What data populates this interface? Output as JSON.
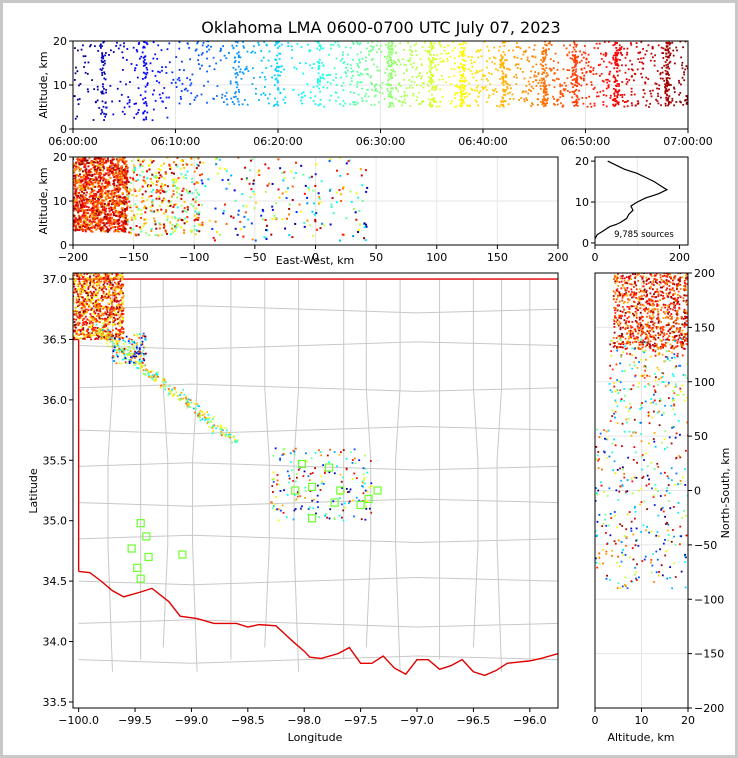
{
  "figure": {
    "title": "Oklahoma LMA 0600-0700 UTC July 07, 2023",
    "source_count_label": "9,785 sources"
  },
  "chart_data": [
    {
      "panel": "altitude-time",
      "type": "scatter",
      "xlabel": "",
      "ylabel": "Altitude, km",
      "x_ticks": [
        "06:00:00",
        "06:10:00",
        "06:20:00",
        "06:30:00",
        "06:40:00",
        "06:50:00",
        "07:00:00"
      ],
      "xlim_minutes": [
        0,
        60
      ],
      "ylim": [
        0,
        20
      ],
      "y_ticks": [
        0,
        10,
        20
      ],
      "colormap": "jet (by time)",
      "grid": true
    },
    {
      "panel": "altitude-eastwest",
      "type": "scatter",
      "xlabel": "East-West, km",
      "ylabel": "Altitude, km",
      "xlim": [
        -200,
        200
      ],
      "x_ticks": [
        -200,
        -150,
        -100,
        -50,
        0,
        50,
        100,
        150,
        200
      ],
      "ylim": [
        0,
        20
      ],
      "y_ticks": [
        0,
        10,
        20
      ],
      "grid": true
    },
    {
      "panel": "altitude-histogram",
      "type": "line",
      "xlim": [
        0,
        220
      ],
      "x_ticks": [
        0,
        200
      ],
      "ylim": [
        -0.5,
        21
      ],
      "y_ticks": [
        0,
        10,
        20
      ],
      "profile": [
        {
          "x": 0,
          "y": 1
        },
        {
          "x": 5,
          "y": 2
        },
        {
          "x": 20,
          "y": 3
        },
        {
          "x": 35,
          "y": 4
        },
        {
          "x": 50,
          "y": 4.5
        },
        {
          "x": 60,
          "y": 5
        },
        {
          "x": 75,
          "y": 6
        },
        {
          "x": 80,
          "y": 7
        },
        {
          "x": 90,
          "y": 8
        },
        {
          "x": 85,
          "y": 9
        },
        {
          "x": 100,
          "y": 10
        },
        {
          "x": 120,
          "y": 11
        },
        {
          "x": 150,
          "y": 12
        },
        {
          "x": 170,
          "y": 13
        },
        {
          "x": 155,
          "y": 14
        },
        {
          "x": 140,
          "y": 15
        },
        {
          "x": 120,
          "y": 16
        },
        {
          "x": 100,
          "y": 17
        },
        {
          "x": 70,
          "y": 18
        },
        {
          "x": 50,
          "y": 19
        },
        {
          "x": 30,
          "y": 20
        }
      ]
    },
    {
      "panel": "plan-view",
      "type": "scatter",
      "xlabel": "Longitude",
      "ylabel": "Latitude",
      "xlim": [
        -100.05,
        -95.75
      ],
      "ylim": [
        33.45,
        37.05
      ],
      "x_ticks": [
        -100.0,
        -99.5,
        -99.0,
        -98.5,
        -98.0,
        -97.5,
        -97.0,
        -96.5,
        -96.0
      ],
      "y_ticks": [
        33.5,
        34.0,
        34.5,
        35.0,
        35.5,
        36.0,
        36.5,
        37.0
      ],
      "x_tick_labels": [
        "−100.0",
        "−99.5",
        "−99.0",
        "−98.5",
        "−98.0",
        "−97.5",
        "−97.0",
        "−96.5",
        "−96.0"
      ],
      "stations": [
        {
          "lon": -98.02,
          "lat": 35.47
        },
        {
          "lon": -97.78,
          "lat": 35.44
        },
        {
          "lon": -98.08,
          "lat": 35.25
        },
        {
          "lon": -97.93,
          "lat": 35.28
        },
        {
          "lon": -97.68,
          "lat": 35.25
        },
        {
          "lon": -97.35,
          "lat": 35.25
        },
        {
          "lon": -97.43,
          "lat": 35.18
        },
        {
          "lon": -97.73,
          "lat": 35.15
        },
        {
          "lon": -97.5,
          "lat": 35.13
        },
        {
          "lon": -97.93,
          "lat": 35.02
        },
        {
          "lon": -99.45,
          "lat": 34.98
        },
        {
          "lon": -99.4,
          "lat": 34.87
        },
        {
          "lon": -99.53,
          "lat": 34.77
        },
        {
          "lon": -99.38,
          "lat": 34.7
        },
        {
          "lon": -99.48,
          "lat": 34.61
        },
        {
          "lon": -99.45,
          "lat": 34.52
        },
        {
          "lon": -99.08,
          "lat": 34.72
        }
      ]
    },
    {
      "panel": "northsouth-altitude",
      "type": "scatter",
      "xlabel": "Altitude, km",
      "ylabel": "North-South, km",
      "xlim": [
        0,
        20
      ],
      "x_ticks": [
        0,
        10,
        20
      ],
      "ylim": [
        -200,
        200
      ],
      "y_ticks": [
        -200,
        -150,
        -100,
        -50,
        0,
        50,
        100,
        150,
        200
      ]
    }
  ]
}
